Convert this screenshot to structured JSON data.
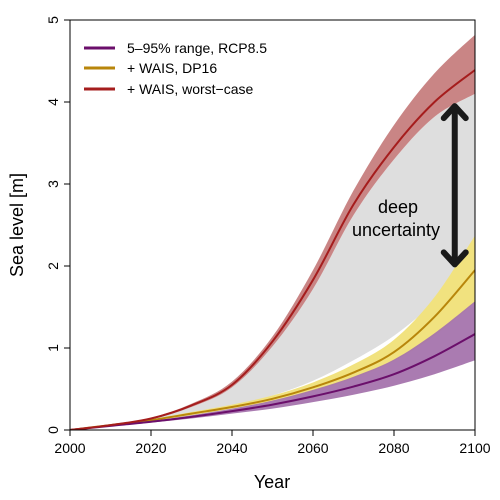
{
  "chart_data": {
    "type": "area",
    "title": "",
    "xlabel": "Year",
    "ylabel": "Sea level [m]",
    "xlim": [
      2000,
      2100
    ],
    "ylim": [
      0,
      5
    ],
    "xticks": [
      2000,
      2020,
      2040,
      2060,
      2080,
      2100
    ],
    "yticks": [
      0,
      1,
      2,
      3,
      4,
      5
    ],
    "grid": false,
    "legend_position": "top-left",
    "deep_uncertainty_band": {
      "fill": "#dedede",
      "x": [
        2000,
        2010,
        2020,
        2030,
        2040,
        2050,
        2060,
        2070,
        2080,
        2090,
        2100
      ],
      "lower": [
        0.0,
        0.06,
        0.12,
        0.2,
        0.3,
        0.42,
        0.6,
        0.85,
        1.15,
        1.55,
        2.0
      ],
      "upper": [
        0.0,
        0.06,
        0.14,
        0.28,
        0.52,
        1.02,
        1.72,
        2.62,
        3.3,
        3.82,
        4.1
      ]
    },
    "series": [
      {
        "name": "5–95% range, RCP8.5",
        "color": "#6b0f6b",
        "band_color": "#a574ad",
        "x": [
          2000,
          2010,
          2020,
          2030,
          2040,
          2050,
          2060,
          2070,
          2080,
          2090,
          2100
        ],
        "median": [
          0.0,
          0.05,
          0.1,
          0.16,
          0.23,
          0.31,
          0.41,
          0.53,
          0.68,
          0.9,
          1.17
        ],
        "lower": [
          0.0,
          0.05,
          0.09,
          0.14,
          0.2,
          0.26,
          0.34,
          0.43,
          0.54,
          0.68,
          0.85
        ],
        "upper": [
          0.0,
          0.06,
          0.11,
          0.18,
          0.26,
          0.36,
          0.49,
          0.65,
          0.86,
          1.18,
          1.57
        ]
      },
      {
        "name": "+ WAIS, DP16",
        "color": "#b8860b",
        "band_color": "#f1e27f",
        "x": [
          2000,
          2010,
          2020,
          2030,
          2040,
          2050,
          2060,
          2070,
          2080,
          2090,
          2100
        ],
        "median": [
          0.0,
          0.06,
          0.12,
          0.2,
          0.28,
          0.38,
          0.52,
          0.7,
          0.95,
          1.38,
          1.95
        ],
        "lower": [
          0.0,
          0.06,
          0.11,
          0.18,
          0.26,
          0.35,
          0.47,
          0.63,
          0.84,
          1.15,
          1.55
        ],
        "upper": [
          0.0,
          0.06,
          0.13,
          0.22,
          0.31,
          0.42,
          0.58,
          0.8,
          1.1,
          1.62,
          2.37
        ]
      },
      {
        "name": "+ WAIS, worst−case",
        "color": "#a51d1d",
        "band_color": "#c98585",
        "x": [
          2000,
          2010,
          2020,
          2030,
          2040,
          2050,
          2060,
          2070,
          2080,
          2090,
          2100
        ],
        "median": [
          0.0,
          0.06,
          0.14,
          0.3,
          0.55,
          1.08,
          1.83,
          2.75,
          3.45,
          4.0,
          4.39
        ],
        "lower": [
          0.0,
          0.06,
          0.13,
          0.28,
          0.52,
          1.02,
          1.72,
          2.62,
          3.3,
          3.82,
          4.1
        ],
        "upper": [
          0.0,
          0.06,
          0.15,
          0.32,
          0.59,
          1.14,
          1.95,
          2.92,
          3.72,
          4.35,
          4.82
        ]
      }
    ],
    "annotation": {
      "text_lines": [
        "deep",
        "uncertainty"
      ],
      "arrow_x": 2095,
      "arrow_y_from": 2.02,
      "arrow_y_to": 3.95,
      "arrow_color": "#1a1a1a"
    }
  }
}
